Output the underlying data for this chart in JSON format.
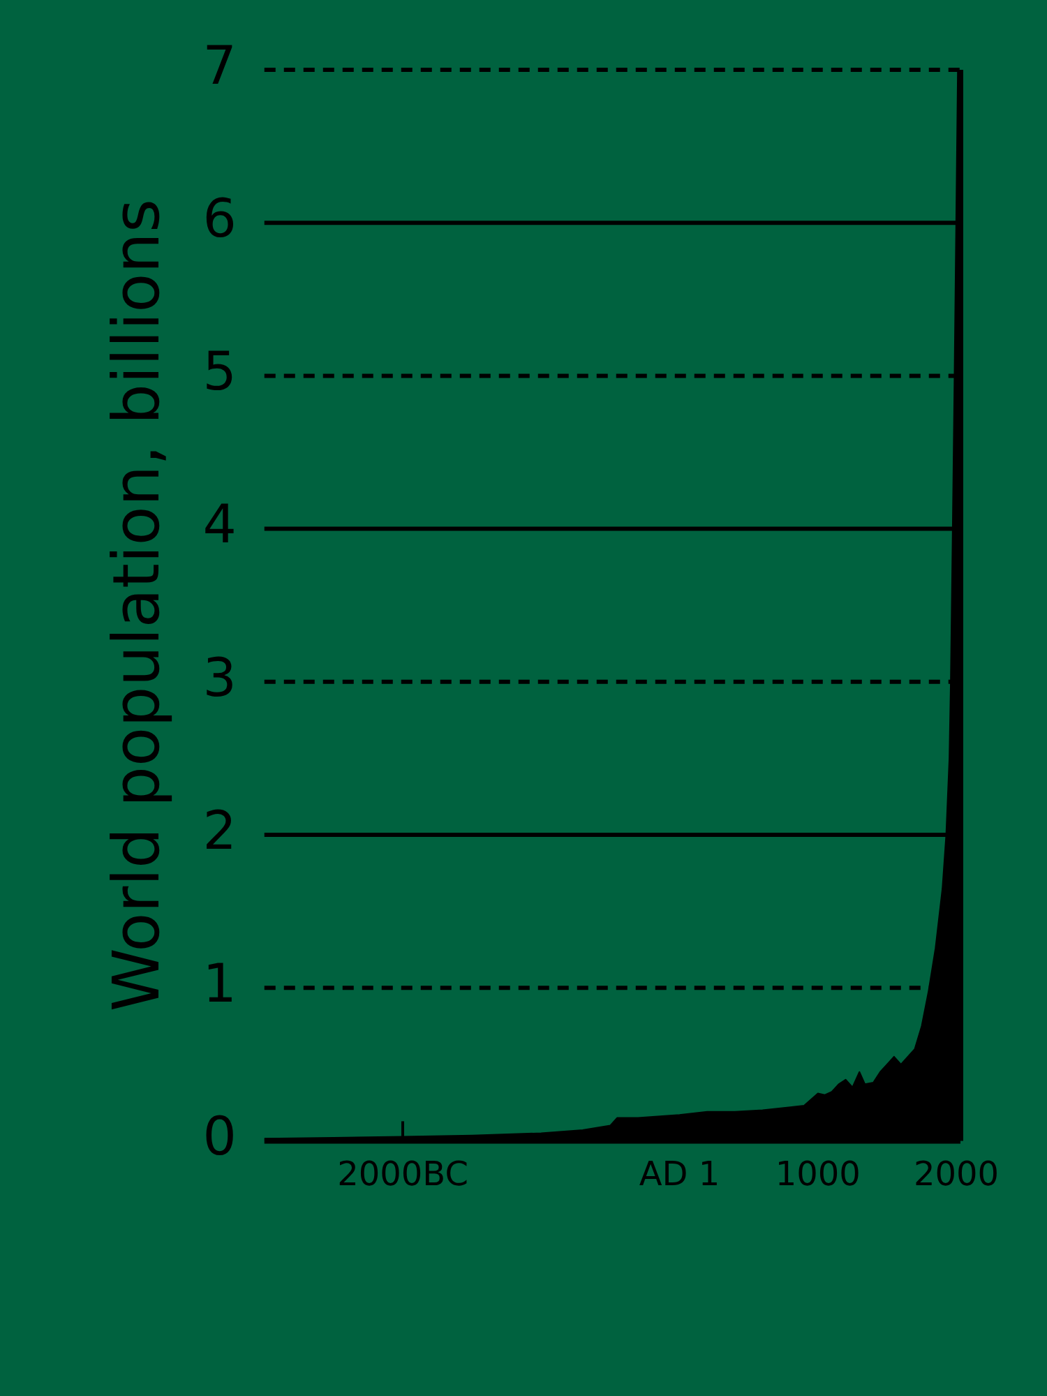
{
  "chart_data": {
    "type": "area",
    "ylabel": "World population, billions",
    "x": [
      -3000,
      -2500,
      -2000,
      -1500,
      -1000,
      -700,
      -500,
      -450,
      -300,
      0,
      200,
      400,
      600,
      800,
      900,
      1000,
      1050,
      1100,
      1150,
      1200,
      1250,
      1300,
      1340,
      1400,
      1450,
      1500,
      1550,
      1600,
      1650,
      1700,
      1750,
      1800,
      1850,
      1900,
      1927,
      1950,
      1960,
      1974,
      1987,
      1999,
      2011
    ],
    "series": [
      {
        "color": "#000000",
        "values": [
          0.014,
          0.02,
          0.027,
          0.035,
          0.05,
          0.07,
          0.1,
          0.15,
          0.15,
          0.17,
          0.19,
          0.19,
          0.2,
          0.22,
          0.23,
          0.31,
          0.3,
          0.32,
          0.37,
          0.4,
          0.35,
          0.45,
          0.37,
          0.38,
          0.45,
          0.5,
          0.55,
          0.5,
          0.55,
          0.6,
          0.75,
          0.98,
          1.26,
          1.65,
          2.0,
          2.5,
          3.0,
          4.0,
          5.0,
          6.0,
          7.0
        ]
      }
    ],
    "xlim": [
      -3000,
      2030
    ],
    "ylim": [
      0,
      7
    ],
    "xticks": [
      {
        "value": -2000,
        "label": "2000BC"
      },
      {
        "value": 0,
        "label": "AD 1"
      },
      1000,
      2000
    ],
    "yticks": [
      0,
      1,
      2,
      3,
      4,
      5,
      6,
      7
    ],
    "grid": "y",
    "legend": false
  }
}
